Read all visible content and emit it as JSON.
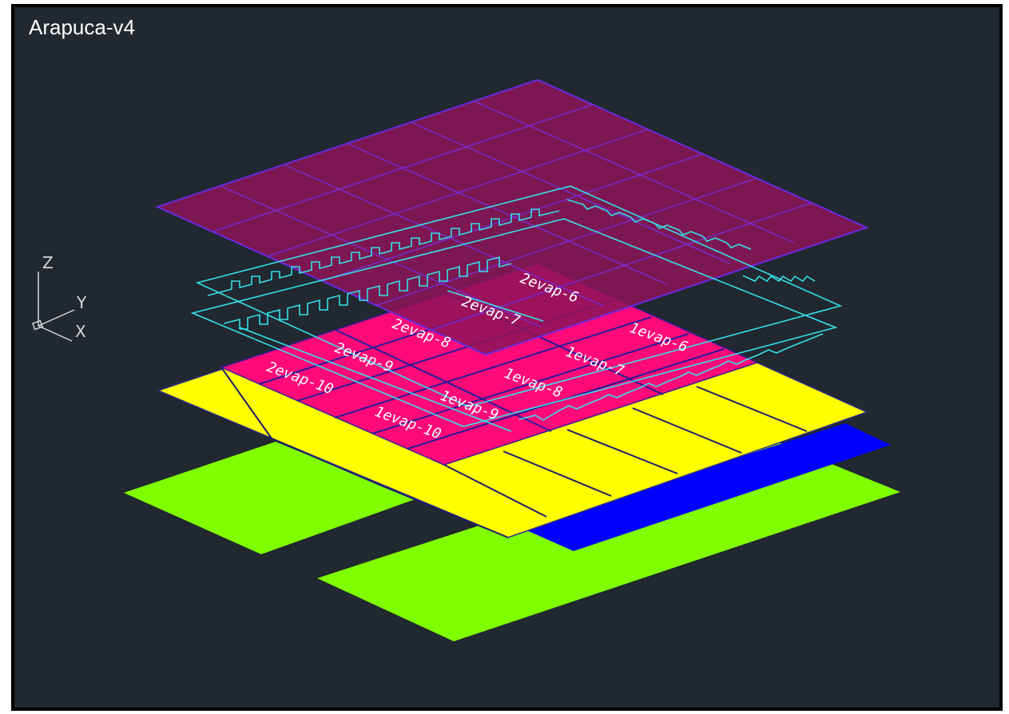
{
  "title": "Arapuca-v4",
  "axes": {
    "z": "Z",
    "y": "Y",
    "x": "X"
  },
  "evaporator_labels": {
    "l2_6": "2evap-6",
    "l2_7": "2evap-7",
    "l2_8": "2evap-8",
    "l2_9": "2evap-9",
    "l2_10": "2evap-10",
    "l1_6": "1evap-6",
    "l1_7": "1evap-7",
    "l1_8": "1evap-8",
    "l1_9": "1evap-9",
    "l1_10": "1evap-10"
  },
  "colors": {
    "background": "#212830",
    "top_plate": "#8c1457",
    "top_plate_grid": "#7a2ad0",
    "evaporator": "#ff0a78",
    "dichroic": "#ffff00",
    "sipm": "#0000ff",
    "base": "#7fff00",
    "frame_outline": "#35e0e8"
  }
}
